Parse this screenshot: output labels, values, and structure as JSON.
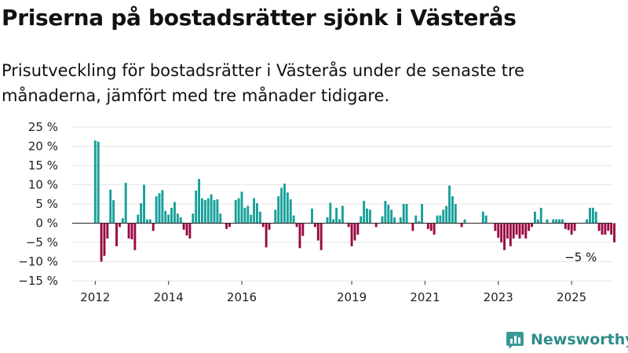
{
  "header": {
    "title": "Priserna på bostadsrätter sjönk i Västerås",
    "subtitle": "Prisutveckling för bostadsrätter i Västerås under de senaste tre månaderna, jämfört med tre månader tidigare."
  },
  "brand": {
    "name": "Newsworthy",
    "icon": "newsworthy-logo-icon",
    "color": "#3a9a96"
  },
  "chart_data": {
    "type": "bar",
    "title": "",
    "xlabel": "",
    "ylabel": "",
    "ylim": [
      -15,
      25
    ],
    "y_ticks": [
      "25 %",
      "20 %",
      "15 %",
      "10 %",
      "5 %",
      "0 %",
      "−5 %",
      "−10 %",
      "−15 %"
    ],
    "y_tick_values": [
      25,
      20,
      15,
      10,
      5,
      0,
      -5,
      -10,
      -15
    ],
    "x_ticks": [
      "2012",
      "2014",
      "2016",
      "2019",
      "2021",
      "2023",
      "2025"
    ],
    "x_tick_dates": [
      "2012-01",
      "2014-01",
      "2016-01",
      "2019-01",
      "2021-01",
      "2023-01",
      "2025-01"
    ],
    "x_start": "2012-01",
    "grid": "horizontal",
    "colors": {
      "positive": "#17a09a",
      "negative": "#980841"
    },
    "annotation": {
      "text": "−5 %",
      "date": "2025-04"
    },
    "values": [
      21.5,
      21.2,
      -10,
      -8.5,
      -4,
      8.7,
      6,
      -6,
      -1,
      1.3,
      10.5,
      -4,
      -4.2,
      -7,
      2.2,
      5.2,
      10,
      1,
      1,
      -2,
      7,
      7.8,
      8.6,
      3.2,
      2.2,
      4,
      5.5,
      2.5,
      1.5,
      -1.7,
      -3.2,
      -4,
      2.5,
      8.5,
      11.5,
      6.5,
      6,
      6.5,
      7.5,
      6,
      6.2,
      2.5,
      0,
      -1.5,
      -1,
      0,
      6,
      6.5,
      8.2,
      4,
      4.5,
      2.2,
      6.5,
      5.2,
      3,
      -1,
      -6.3,
      -1.7,
      0,
      3.5,
      7,
      9.2,
      10.3,
      8,
      6.2,
      2,
      -1,
      -6.5,
      -3.3,
      0,
      0,
      3.8,
      -1,
      -4.5,
      -7,
      0,
      1.5,
      5.3,
      1,
      4,
      1,
      4.5,
      0,
      -1,
      -6,
      -4.5,
      -3,
      1.8,
      5.8,
      3.8,
      3.5,
      0,
      -1,
      0,
      1.8,
      5.8,
      4.8,
      3.5,
      1.5,
      0,
      1.5,
      5,
      5,
      0,
      -2,
      2,
      0.5,
      5,
      0,
      -1.5,
      -2,
      -3,
      2,
      2,
      3.5,
      4.5,
      9.8,
      7,
      5,
      0,
      -1,
      1,
      0,
      0,
      0,
      0,
      0,
      3,
      2,
      0,
      0,
      -2,
      -3.8,
      -5,
      -7,
      -4,
      -6,
      -4,
      -3,
      -4,
      -3,
      -4,
      -2,
      -1,
      3,
      1,
      4,
      0,
      1,
      0,
      1,
      1,
      1,
      1,
      -1.5,
      -1.8,
      -3,
      -2,
      0,
      0,
      0,
      1,
      4,
      4,
      3,
      -2,
      -3,
      -3,
      -2,
      -3,
      -5
    ]
  }
}
